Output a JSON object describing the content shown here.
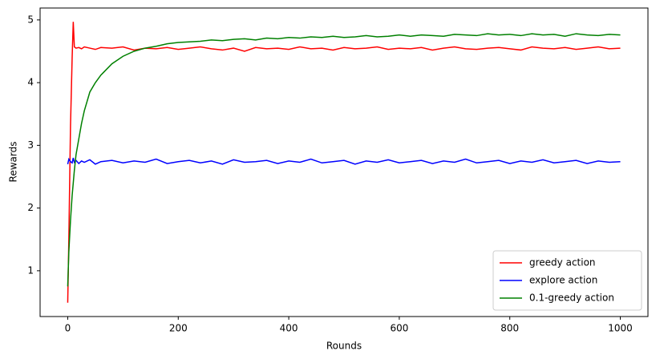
{
  "chart_data": {
    "type": "line",
    "x_label": "Rounds",
    "y_label": "Rewards",
    "x": [
      0,
      2,
      5,
      8,
      10,
      12,
      15,
      20,
      25,
      30,
      40,
      50,
      60,
      80,
      100,
      120,
      140,
      160,
      180,
      200,
      220,
      240,
      260,
      280,
      300,
      320,
      340,
      360,
      380,
      400,
      420,
      440,
      460,
      480,
      500,
      520,
      540,
      560,
      580,
      600,
      620,
      640,
      660,
      680,
      700,
      720,
      740,
      760,
      780,
      800,
      820,
      840,
      860,
      880,
      900,
      920,
      940,
      960,
      980,
      1000
    ],
    "series": [
      {
        "name": "greedy action",
        "color": "#ff0000",
        "values": [
          0.49,
          1.5,
          3.3,
          4.4,
          4.97,
          4.57,
          4.55,
          4.56,
          4.54,
          4.57,
          4.55,
          4.53,
          4.56,
          4.55,
          4.57,
          4.52,
          4.55,
          4.54,
          4.56,
          4.53,
          4.55,
          4.57,
          4.54,
          4.52,
          4.55,
          4.5,
          4.56,
          4.54,
          4.55,
          4.53,
          4.57,
          4.54,
          4.55,
          4.52,
          4.56,
          4.54,
          4.55,
          4.57,
          4.53,
          4.55,
          4.54,
          4.56,
          4.52,
          4.55,
          4.57,
          4.54,
          4.53,
          4.55,
          4.56,
          4.54,
          4.52,
          4.57,
          4.55,
          4.54,
          4.56,
          4.53,
          4.55,
          4.57,
          4.54,
          4.55
        ]
      },
      {
        "name": "explore action",
        "color": "#0000ff",
        "values": [
          2.7,
          2.78,
          2.74,
          2.72,
          2.8,
          2.73,
          2.76,
          2.71,
          2.75,
          2.73,
          2.77,
          2.7,
          2.74,
          2.76,
          2.72,
          2.75,
          2.73,
          2.78,
          2.71,
          2.74,
          2.76,
          2.72,
          2.75,
          2.7,
          2.77,
          2.73,
          2.74,
          2.76,
          2.71,
          2.75,
          2.73,
          2.78,
          2.72,
          2.74,
          2.76,
          2.7,
          2.75,
          2.73,
          2.77,
          2.72,
          2.74,
          2.76,
          2.71,
          2.75,
          2.73,
          2.78,
          2.72,
          2.74,
          2.76,
          2.71,
          2.75,
          2.73,
          2.77,
          2.72,
          2.74,
          2.76,
          2.71,
          2.75,
          2.73,
          2.74
        ]
      },
      {
        "name": "0.1-greedy action",
        "color": "#008000",
        "values": [
          0.75,
          1.3,
          1.8,
          2.2,
          2.4,
          2.6,
          2.85,
          3.1,
          3.35,
          3.55,
          3.85,
          4.0,
          4.12,
          4.3,
          4.42,
          4.5,
          4.55,
          4.58,
          4.62,
          4.64,
          4.65,
          4.66,
          4.68,
          4.67,
          4.69,
          4.7,
          4.68,
          4.71,
          4.7,
          4.72,
          4.71,
          4.73,
          4.72,
          4.74,
          4.72,
          4.73,
          4.75,
          4.73,
          4.74,
          4.76,
          4.74,
          4.76,
          4.75,
          4.74,
          4.77,
          4.76,
          4.75,
          4.78,
          4.76,
          4.77,
          4.75,
          4.78,
          4.76,
          4.77,
          4.74,
          4.78,
          4.76,
          4.75,
          4.77,
          4.76
        ]
      }
    ],
    "xlim": [
      -50,
      1050
    ],
    "ylim": [
      0.27,
      5.19
    ],
    "xticks": [
      0,
      200,
      400,
      600,
      800,
      1000
    ],
    "yticks": [
      1,
      2,
      3,
      4,
      5
    ],
    "legend": "lower right"
  }
}
